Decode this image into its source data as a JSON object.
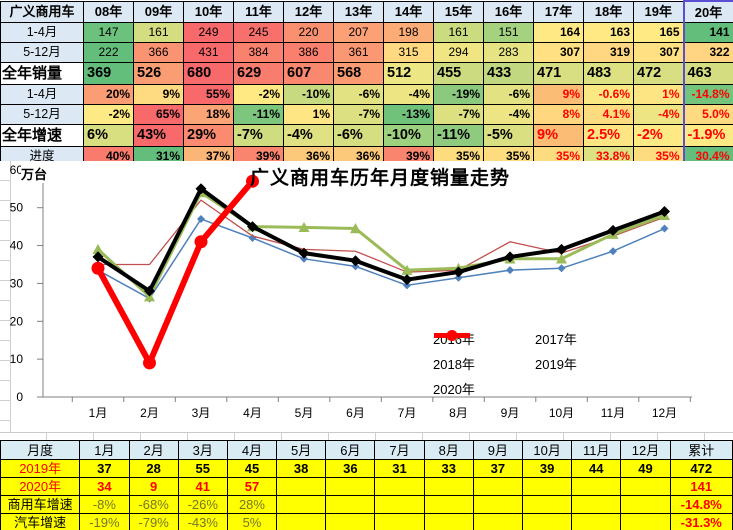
{
  "top_table": {
    "header": [
      "广义商用车",
      "08年",
      "09年",
      "10年",
      "11年",
      "12年",
      "13年",
      "14年",
      "15年",
      "16年",
      "17年",
      "18年",
      "19年",
      "20年"
    ],
    "rows": [
      {
        "label": "1-4月",
        "align": "center",
        "cells": [
          {
            "v": "147",
            "bg": "#6CC17C"
          },
          {
            "v": "161",
            "bg": "#D4DE81"
          },
          {
            "v": "249",
            "bg": "#F8696B"
          },
          {
            "v": "245",
            "bg": "#F8706C"
          },
          {
            "v": "220",
            "bg": "#F99170"
          },
          {
            "v": "207",
            "bg": "#FBA175"
          },
          {
            "v": "198",
            "bg": "#FBAC77"
          },
          {
            "v": "161",
            "bg": "#CBDB80"
          },
          {
            "v": "151",
            "bg": "#A5D27F"
          },
          {
            "v": "164",
            "bg": "#FFE984",
            "a": "right",
            "b": 1
          },
          {
            "v": "163",
            "bg": "#FFE984",
            "a": "right",
            "b": 1
          },
          {
            "v": "165",
            "bg": "#FFEA84",
            "a": "right",
            "b": 1
          },
          {
            "v": "141",
            "bg": "#63BE7B",
            "a": "right",
            "b": 1
          }
        ]
      },
      {
        "label": "5-12月",
        "align": "center",
        "cells": [
          {
            "v": "222",
            "bg": "#63BE7B"
          },
          {
            "v": "366",
            "bg": "#FA9372"
          },
          {
            "v": "431",
            "bg": "#F8696B"
          },
          {
            "v": "384",
            "bg": "#F9826F"
          },
          {
            "v": "386",
            "bg": "#F9806F"
          },
          {
            "v": "361",
            "bg": "#FA9873"
          },
          {
            "v": "315",
            "bg": "#FFD982"
          },
          {
            "v": "294",
            "bg": "#EFE683"
          },
          {
            "v": "283",
            "bg": "#E5E383"
          },
          {
            "v": "307",
            "bg": "#FFE183",
            "a": "right",
            "b": 1
          },
          {
            "v": "319",
            "bg": "#FFD682",
            "a": "right",
            "b": 1
          },
          {
            "v": "307",
            "bg": "#FFE183",
            "a": "right",
            "b": 1
          },
          {
            "v": "322",
            "bg": "#FFD482",
            "a": "right",
            "b": 1
          }
        ]
      },
      {
        "label": "全年销量",
        "big": true,
        "align": "left",
        "bold": 1,
        "cells": [
          {
            "v": "369",
            "bg": "#63BE7B"
          },
          {
            "v": "526",
            "bg": "#FB9D74"
          },
          {
            "v": "680",
            "bg": "#F8696B"
          },
          {
            "v": "629",
            "bg": "#F97D6E"
          },
          {
            "v": "607",
            "bg": "#FA886F"
          },
          {
            "v": "568",
            "bg": "#FB9B73"
          },
          {
            "v": "512",
            "bg": "#EDE684"
          },
          {
            "v": "455",
            "bg": "#CCDB80"
          },
          {
            "v": "433",
            "bg": "#C2D880"
          },
          {
            "v": "471",
            "bg": "#D7DF82"
          },
          {
            "v": "483",
            "bg": "#DEE182"
          },
          {
            "v": "472",
            "bg": "#D8DF82"
          },
          {
            "v": "463",
            "bg": "#D4DE81"
          }
        ]
      },
      {
        "label": "1-4月",
        "align": "right",
        "bold": 1,
        "cells": [
          {
            "v": "20%",
            "bg": "#FB9D74"
          },
          {
            "v": "9%",
            "bg": "#FEDB81"
          },
          {
            "v": "55%",
            "bg": "#F8696B"
          },
          {
            "v": "-2%",
            "bg": "#FEE983"
          },
          {
            "v": "-10%",
            "bg": "#C8DA80"
          },
          {
            "v": "-6%",
            "bg": "#E3E282"
          },
          {
            "v": "-4%",
            "bg": "#EDE583"
          },
          {
            "v": "-19%",
            "bg": "#8BCA7E"
          },
          {
            "v": "-6%",
            "bg": "#E3E282"
          },
          {
            "v": "9%",
            "bg": "#FBBC76",
            "fg": "#FF0000"
          },
          {
            "v": "-0.6%",
            "bg": "#FAE983",
            "fg": "#FF0000"
          },
          {
            "v": "1%",
            "bg": "#FEE583",
            "fg": "#FF0000"
          },
          {
            "v": "-14.8%",
            "bg": "#74C47C",
            "fg": "#FF0000"
          }
        ]
      },
      {
        "label": "5-12月",
        "align": "right",
        "bold": 1,
        "cells": [
          {
            "v": "-2%",
            "bg": "#FEEA84"
          },
          {
            "v": "65%",
            "bg": "#F8696B"
          },
          {
            "v": "18%",
            "bg": "#FBA476"
          },
          {
            "v": "-11%",
            "bg": "#7CC67D"
          },
          {
            "v": "1%",
            "bg": "#FDE683"
          },
          {
            "v": "-7%",
            "bg": "#DCE081"
          },
          {
            "v": "-13%",
            "bg": "#70C27B"
          },
          {
            "v": "-7%",
            "bg": "#DCE081"
          },
          {
            "v": "-4%",
            "bg": "#EDE583"
          },
          {
            "v": "8%",
            "bg": "#FED77F",
            "fg": "#FF0000"
          },
          {
            "v": "4.1%",
            "bg": "#FDDC80",
            "fg": "#FF0000"
          },
          {
            "v": "-4%",
            "bg": "#EDE583",
            "fg": "#FF0000"
          },
          {
            "v": "5.0%",
            "bg": "#FEDA80",
            "fg": "#FF0000"
          }
        ]
      },
      {
        "label": "全年增速",
        "big": true,
        "align": "left",
        "bold": 1,
        "cells": [
          {
            "v": "6%",
            "bg": "#D7DF81"
          },
          {
            "v": "43%",
            "bg": "#F8696B"
          },
          {
            "v": "29%",
            "bg": "#FA8B70"
          },
          {
            "v": "-7%",
            "bg": "#CFDC80"
          },
          {
            "v": "-4%",
            "bg": "#DFE182"
          },
          {
            "v": "-6%",
            "bg": "#D5DE81"
          },
          {
            "v": "-10%",
            "bg": "#9DD07F"
          },
          {
            "v": "-11%",
            "bg": "#8FCB7E"
          },
          {
            "v": "-5%",
            "bg": "#DAE081"
          },
          {
            "v": "9%",
            "bg": "#FBBC76",
            "fg": "#FF0000"
          },
          {
            "v": "2.5%",
            "bg": "#FEE583",
            "fg": "#FF0000"
          },
          {
            "v": "-2%",
            "bg": "#FEEA84",
            "fg": "#FF0000"
          },
          {
            "v": "-1.9%",
            "bg": "#FEEA84",
            "fg": "#FF0000"
          }
        ]
      },
      {
        "label": "进度",
        "align": "right",
        "bold": 1,
        "cells": [
          {
            "v": "40%",
            "bg": "#F87B6E"
          },
          {
            "v": "31%",
            "bg": "#63BE7B"
          },
          {
            "v": "37%",
            "bg": "#FBB577"
          },
          {
            "v": "39%",
            "bg": "#F9856F"
          },
          {
            "v": "36%",
            "bg": "#FCC97B"
          },
          {
            "v": "36%",
            "bg": "#FCC97B"
          },
          {
            "v": "39%",
            "bg": "#F9856F"
          },
          {
            "v": "35%",
            "bg": "#FDDC7F"
          },
          {
            "v": "35%",
            "bg": "#FDDC7F"
          },
          {
            "v": "35%",
            "bg": "#FDDC7F",
            "fg": "#FF0000"
          },
          {
            "v": "33.8%",
            "bg": "#DCE181",
            "fg": "#FF0000"
          },
          {
            "v": "35%",
            "bg": "#FDDC7F",
            "fg": "#FF0000"
          },
          {
            "v": "30.4%",
            "bg": "#63BE7B",
            "fg": "#FF0000"
          }
        ]
      }
    ]
  },
  "chart_data": {
    "type": "line",
    "title": "广义商用车历年月度销量走势",
    "unit_label": "万台",
    "x_categories": [
      "1月",
      "2月",
      "3月",
      "4月",
      "5月",
      "6月",
      "7月",
      "8月",
      "9月",
      "10月",
      "11月",
      "12月"
    ],
    "ylim": [
      0,
      60
    ],
    "yticks": [
      0,
      10,
      20,
      30,
      40,
      50,
      60
    ],
    "grid": "off",
    "legend_position": "inside-lower-right",
    "series": [
      {
        "name": "2016年",
        "color": "#4F81BD",
        "marker": "diamond",
        "width": 1.5,
        "msize": 4,
        "values": [
          33.5,
          26,
          47,
          42,
          36.5,
          34.5,
          29.5,
          31.5,
          33.5,
          34,
          38.5,
          44.5
        ]
      },
      {
        "name": "2017年",
        "color": "#C0504D",
        "marker": "none",
        "width": 1.3,
        "msize": 0,
        "values": [
          35,
          35,
          52,
          42.5,
          39,
          38.5,
          33,
          33.5,
          41,
          38,
          42.5,
          47.5
        ]
      },
      {
        "name": "2018年",
        "color": "#9BBB59",
        "marker": "triangle",
        "width": 3,
        "msize": 5.5,
        "values": [
          39,
          26.5,
          54,
          45,
          44.8,
          44.5,
          33.5,
          34,
          36.5,
          36.5,
          43,
          48
        ]
      },
      {
        "name": "2019年",
        "color": "#000000",
        "marker": "diamond",
        "width": 4,
        "msize": 5.5,
        "values": [
          37,
          28,
          55,
          45,
          38,
          36,
          31,
          33,
          37,
          39,
          44,
          49
        ]
      },
      {
        "name": "2020年",
        "color": "#FF0000",
        "marker": "circle",
        "width": 6,
        "msize": 6.5,
        "values": [
          34,
          9,
          41,
          57
        ]
      }
    ]
  },
  "bottom_table": {
    "header": [
      "月度",
      "1月",
      "2月",
      "3月",
      "4月",
      "5月",
      "6月",
      "7月",
      "8月",
      "9月",
      "10月",
      "11月",
      "12月",
      "累计"
    ],
    "yellow": "#FFFF00",
    "rows": [
      {
        "label": "2019年",
        "label_fg": "#FF0000",
        "fg": "#000000",
        "bold": 1,
        "cells": [
          {
            "v": "37"
          },
          {
            "v": "28"
          },
          {
            "v": "55"
          },
          {
            "v": "45"
          },
          {
            "v": "38"
          },
          {
            "v": "36"
          },
          {
            "v": "31"
          },
          {
            "v": "33"
          },
          {
            "v": "37"
          },
          {
            "v": "39"
          },
          {
            "v": "44"
          },
          {
            "v": "49"
          },
          {
            "v": "472"
          }
        ]
      },
      {
        "label": "2020年",
        "label_fg": "#FF0000",
        "fg": "#FF0000",
        "bold": 1,
        "cells": [
          {
            "v": "34"
          },
          {
            "v": "9"
          },
          {
            "v": "41"
          },
          {
            "v": "57"
          },
          {
            "v": ""
          },
          {
            "v": ""
          },
          {
            "v": ""
          },
          {
            "v": ""
          },
          {
            "v": ""
          },
          {
            "v": ""
          },
          {
            "v": ""
          },
          {
            "v": ""
          },
          {
            "v": "141"
          }
        ]
      },
      {
        "label": "商用车增速",
        "label_fg": "#000000",
        "fg": "#76762B",
        "bold": 0,
        "cells": [
          {
            "v": "-8%"
          },
          {
            "v": "-68%"
          },
          {
            "v": "-26%"
          },
          {
            "v": "28%"
          },
          {
            "v": ""
          },
          {
            "v": ""
          },
          {
            "v": ""
          },
          {
            "v": ""
          },
          {
            "v": ""
          },
          {
            "v": ""
          },
          {
            "v": ""
          },
          {
            "v": ""
          },
          {
            "v": "-14.8%",
            "fg": "#FF0000",
            "b": 1
          }
        ]
      },
      {
        "label": "汽车增速",
        "label_fg": "#000000",
        "fg": "#76762B",
        "bold": 0,
        "cells": [
          {
            "v": "-19%"
          },
          {
            "v": "-79%"
          },
          {
            "v": "-43%"
          },
          {
            "v": "5%"
          },
          {
            "v": ""
          },
          {
            "v": ""
          },
          {
            "v": ""
          },
          {
            "v": ""
          },
          {
            "v": ""
          },
          {
            "v": ""
          },
          {
            "v": ""
          },
          {
            "v": ""
          },
          {
            "v": "-31.3%",
            "fg": "#FF0000",
            "b": 1
          }
        ]
      }
    ]
  }
}
